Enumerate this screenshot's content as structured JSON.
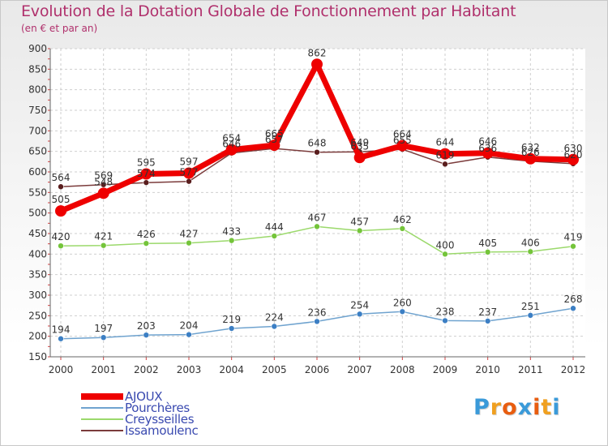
{
  "chart_data": {
    "type": "line",
    "title": "Evolution de la Dotation Globale de Fonctionnement par Habitant",
    "subtitle": "(en € et par an)",
    "xlabel": "",
    "ylabel": "",
    "ylim": [
      150,
      900
    ],
    "yticks": [
      150,
      200,
      250,
      300,
      350,
      400,
      450,
      500,
      550,
      600,
      650,
      700,
      750,
      800,
      850,
      900
    ],
    "categories": [
      "2000",
      "2001",
      "2002",
      "2003",
      "2004",
      "2005",
      "2006",
      "2007",
      "2008",
      "2009",
      "2010",
      "2011",
      "2012"
    ],
    "grid": true,
    "legend_position": "bottom-left",
    "series": [
      {
        "name": "AJOUX",
        "values": [
          505,
          548,
          595,
          597,
          654,
          665,
          862,
          635,
          664,
          644,
          646,
          632,
          630
        ]
      },
      {
        "name": "Pourchères",
        "values": [
          194,
          197,
          203,
          204,
          219,
          224,
          236,
          254,
          260,
          238,
          237,
          251,
          268
        ]
      },
      {
        "name": "Creysseilles",
        "values": [
          420,
          421,
          426,
          427,
          433,
          444,
          467,
          457,
          462,
          400,
          405,
          406,
          419
        ]
      },
      {
        "name": "Issamoulenc",
        "values": [
          564,
          569,
          574,
          577,
          646,
          657,
          648,
          649,
          655,
          619,
          636,
          626,
          620
        ]
      }
    ]
  },
  "colors": {
    "title": "#b0306c",
    "AJOUX": "#ee0000",
    "Pourchères": "#6fa3cf",
    "Creysseilles": "#9bd96b",
    "Issamoulenc": "#7b3b3b",
    "Pourchères_marker": "#3c7fc4",
    "Creysseilles_marker": "#74c43a",
    "Issamoulenc_marker": "#5a1e1e"
  },
  "brand": {
    "letters": [
      "P",
      "r",
      "o",
      "x",
      "i",
      "t",
      "i"
    ],
    "letter_colors": [
      "#3a9ad9",
      "#f0a020",
      "#e85d10",
      "#3a9ad9",
      "#e85d10",
      "#f0a020",
      "#3a9ad9"
    ]
  }
}
